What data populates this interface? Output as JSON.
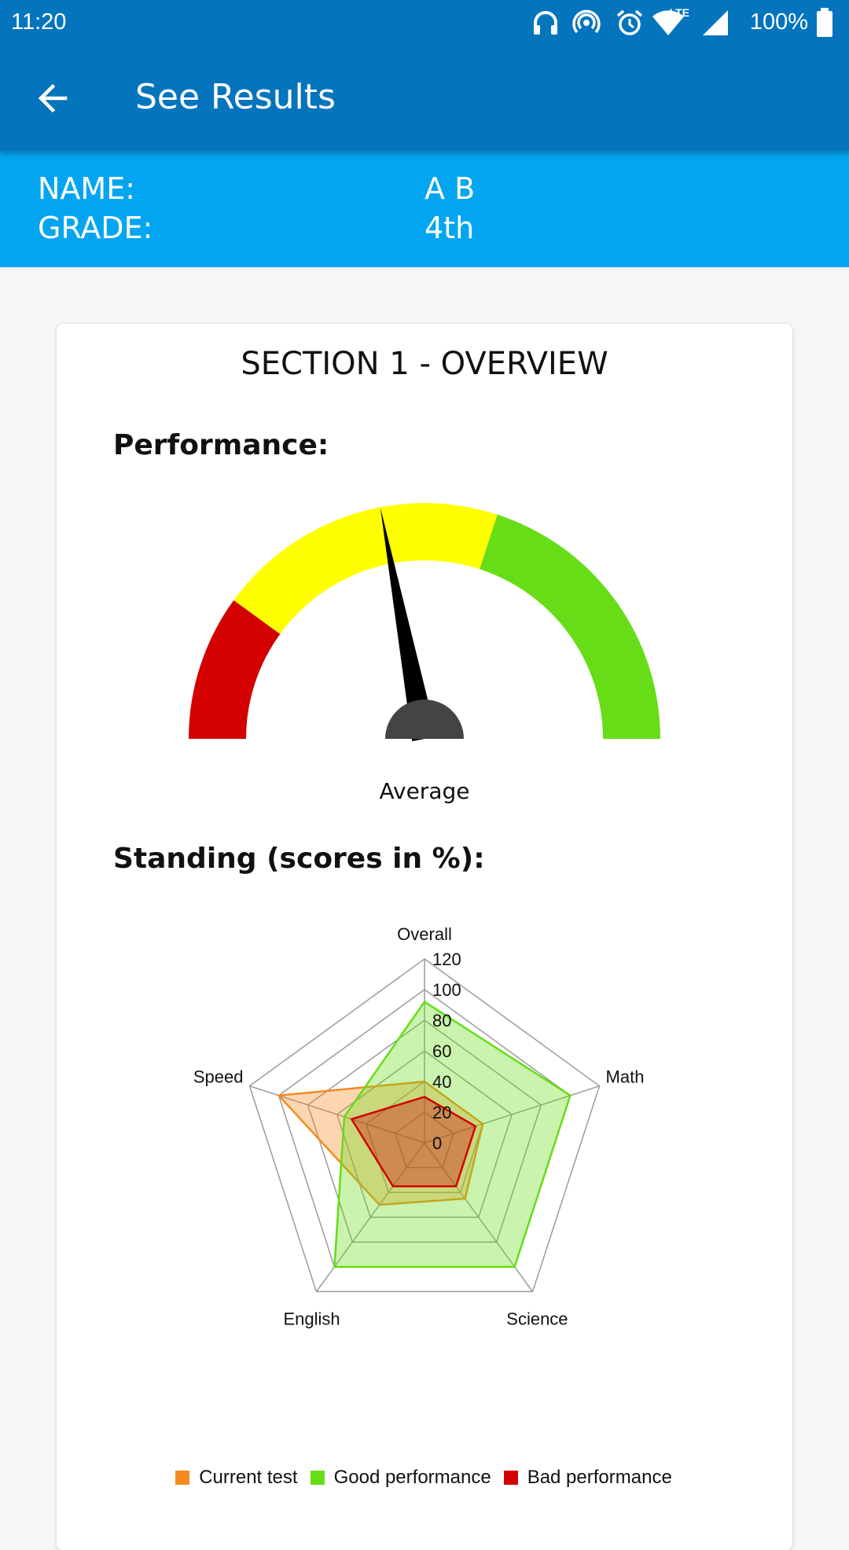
{
  "status_bar": {
    "time": "11:20",
    "battery": "100%",
    "network": "LTE",
    "icons": [
      "headphones-icon",
      "hotspot-icon",
      "alarm-icon",
      "wifi-icon",
      "signal-icon",
      "battery-icon"
    ]
  },
  "app_bar": {
    "title": "See Results",
    "back_icon": "arrow-left-icon"
  },
  "student": {
    "name_label": "NAME:",
    "name_value": "A B",
    "grade_label": "GRADE:",
    "grade_value": "4th"
  },
  "colors": {
    "app_bar": "#0474bd",
    "info_band": "#03a5f1",
    "gauge_red": "#d40000",
    "gauge_yellow": "#ffff00",
    "gauge_green": "#66dd17",
    "current_test": "#f58a1f",
    "good_performance": "#66dd17",
    "bad_performance": "#d40000"
  },
  "section": {
    "title": "SECTION 1 - OVERVIEW",
    "performance_heading": "Performance:",
    "standing_heading": "Standing (scores in %):"
  },
  "gauge": {
    "label": "Average",
    "needle_fraction": 0.44,
    "bands": [
      {
        "from": 0.0,
        "to": 0.2,
        "color": "#d40000"
      },
      {
        "from": 0.2,
        "to": 0.6,
        "color": "#ffff00"
      },
      {
        "from": 0.6,
        "to": 1.0,
        "color": "#66dd17"
      }
    ]
  },
  "chart_data": {
    "type": "radar",
    "categories": [
      "Overall",
      "Math",
      "Science",
      "English",
      "Speed"
    ],
    "rmax": 120,
    "ticks": [
      0,
      20,
      40,
      60,
      80,
      100,
      120
    ],
    "series": [
      {
        "name": "Current test",
        "values": [
          40,
          40,
          45,
          50,
          100
        ],
        "color": "#f58a1f"
      },
      {
        "name": "Good performance",
        "values": [
          92,
          100,
          100,
          100,
          55
        ],
        "color": "#66dd17"
      },
      {
        "name": "Bad performance",
        "values": [
          30,
          35,
          35,
          35,
          50
        ],
        "color": "#d40000"
      }
    ],
    "legend_position": "bottom"
  }
}
